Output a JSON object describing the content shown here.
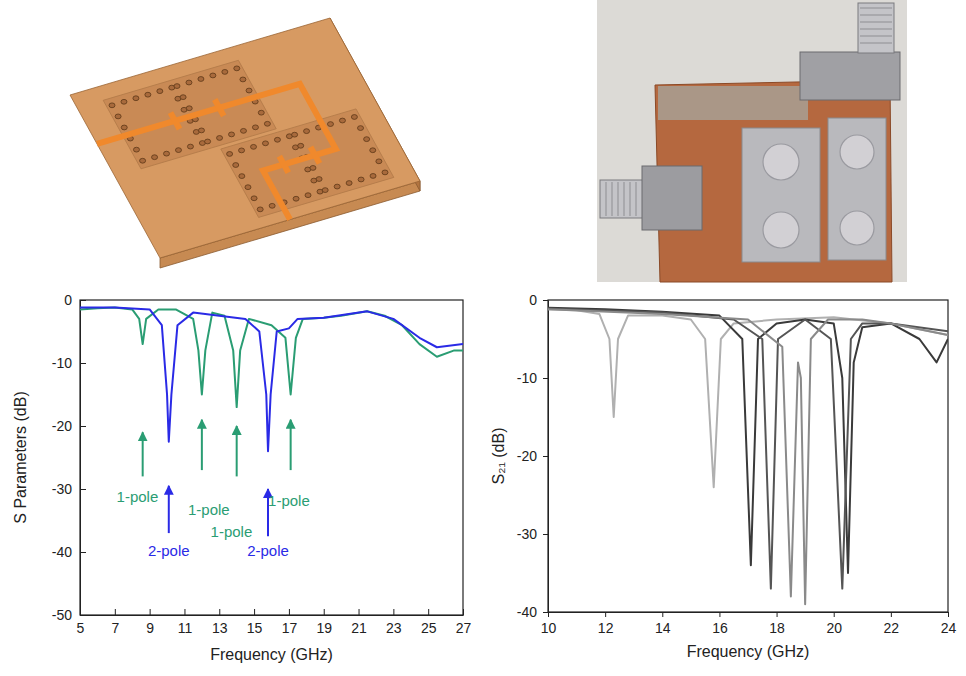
{
  "chart_data": [
    {
      "type": "line",
      "xlabel": "Frequency (GHz)",
      "ylabel": "S Parameters (dB)",
      "xlim": [
        5,
        27
      ],
      "xticks": [
        5,
        7,
        9,
        11,
        13,
        15,
        17,
        19,
        21,
        23,
        25,
        27
      ],
      "ylim": [
        -50,
        0
      ],
      "yticks": [
        -50,
        -40,
        -30,
        -20,
        -10,
        0
      ],
      "grid": false,
      "series": [
        {
          "color": "#2a9d73",
          "x": [
            5,
            6,
            7,
            8,
            8.4,
            8.6,
            8.8,
            9.5,
            10.5,
            11.5,
            11.8,
            12,
            12.2,
            12.6,
            13.3,
            13.8,
            14,
            14.2,
            14.7,
            16,
            16.8,
            17.1,
            17.4,
            17.8,
            19,
            20,
            21.5,
            22.5,
            23.5,
            24.5,
            25.5,
            26.5,
            27
          ],
          "values": [
            -1.5,
            -1.3,
            -1.2,
            -1.5,
            -3,
            -7,
            -3,
            -1.5,
            -1.5,
            -3,
            -8,
            -15,
            -8,
            -2,
            -2.5,
            -8,
            -17,
            -8,
            -3,
            -4,
            -6,
            -15,
            -6,
            -3,
            -2.8,
            -2.5,
            -1.8,
            -2.5,
            -4,
            -7,
            -9,
            -8,
            -8
          ]
        },
        {
          "color": "#2a2ae6",
          "x": [
            5,
            7,
            9,
            9.7,
            10,
            10.1,
            10.25,
            10.6,
            11.5,
            13,
            14.5,
            15.3,
            15.7,
            15.8,
            15.95,
            16.3,
            17,
            17.5,
            19,
            21.5,
            23,
            24.5,
            25.5,
            27
          ],
          "values": [
            -1.2,
            -1.2,
            -1.5,
            -4,
            -15,
            -22.5,
            -15,
            -4,
            -2,
            -2.5,
            -3,
            -5,
            -15,
            -24,
            -15,
            -5,
            -4.5,
            -3,
            -2.8,
            -1.8,
            -3,
            -6,
            -7.5,
            -7
          ]
        }
      ],
      "annotations": [
        {
          "text": "1-pole",
          "color": "#2a9d73",
          "x": 8.6,
          "y": -21,
          "y_end": -28,
          "text_x": 8.3,
          "text_y": -31.5
        },
        {
          "text": "2-pole",
          "color": "#2a2ae6",
          "x": 10.1,
          "y": -29.5,
          "y_end": -37,
          "text_x": 10.1,
          "text_y": -40
        },
        {
          "text": "1-pole",
          "color": "#2a9d73",
          "x": 12,
          "y": -19,
          "y_end": -27,
          "text_x": 12.4,
          "text_y": -33.5
        },
        {
          "text": "1-pole",
          "color": "#2a9d73",
          "x": 14,
          "y": -20,
          "y_end": -28,
          "text_x": 13.7,
          "text_y": -37
        },
        {
          "text": "2-pole",
          "color": "#2a2ae6",
          "x": 15.8,
          "y": -30,
          "y_end": -37.5,
          "text_x": 15.8,
          "text_y": -40
        },
        {
          "text": "1-pole",
          "color": "#2a9d73",
          "x": 17.1,
          "y": -19,
          "y_end": -27,
          "text_x": 17,
          "text_y": -32
        }
      ]
    },
    {
      "type": "line",
      "xlabel": "Frequency (GHz)",
      "ylabel": "S₂₁ (dB)",
      "xlim": [
        10,
        24
      ],
      "xticks": [
        10,
        12,
        14,
        16,
        18,
        20,
        22,
        24
      ],
      "ylim": [
        -40,
        0
      ],
      "yticks": [
        -40,
        -30,
        -20,
        -10,
        0
      ],
      "grid": false,
      "series": [
        {
          "color": "#b0b0b0",
          "x": [
            10,
            11,
            11.8,
            12.15,
            12.3,
            12.45,
            12.8,
            14,
            15,
            15.5,
            15.8,
            16.05,
            16.5,
            18,
            20,
            22,
            24
          ],
          "values": [
            -1.2,
            -1.3,
            -1.8,
            -5,
            -15,
            -5,
            -2,
            -2,
            -2.5,
            -5,
            -24,
            -5,
            -3,
            -2.5,
            -2.2,
            -3,
            -4.5
          ]
        },
        {
          "color": "#3a3a3a",
          "x": [
            10,
            12,
            14,
            16,
            16.8,
            17.1,
            17.35,
            18,
            19,
            20,
            20.3,
            20.5,
            20.7,
            21,
            22,
            23,
            23.6,
            24
          ],
          "values": [
            -1,
            -1.2,
            -1.5,
            -2,
            -5,
            -34,
            -5,
            -3,
            -2.5,
            -3,
            -10,
            -35,
            -8,
            -3.5,
            -3,
            -5,
            -8,
            -5
          ]
        },
        {
          "color": "#555555",
          "x": [
            10,
            14,
            16.5,
            17.5,
            17.8,
            18.05,
            19,
            19.9,
            20.3,
            20.6,
            21,
            22,
            24
          ],
          "values": [
            -1.1,
            -1.6,
            -2.5,
            -5,
            -37,
            -5,
            -2.5,
            -5,
            -37,
            -5,
            -3,
            -3,
            -4
          ]
        },
        {
          "color": "#8a8a8a",
          "x": [
            10,
            14,
            17,
            18.2,
            18.5,
            18.75,
            18.85,
            19,
            19.2,
            19.8,
            21,
            22,
            24
          ],
          "values": [
            -1.2,
            -1.8,
            -2.5,
            -6,
            -38,
            -8,
            -10,
            -39,
            -5,
            -2.5,
            -2.5,
            -3,
            -4.5
          ]
        }
      ]
    }
  ]
}
